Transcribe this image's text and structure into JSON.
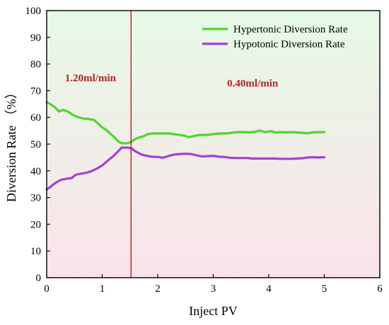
{
  "chart_data": {
    "type": "line",
    "title": "",
    "xlabel": "Inject PV",
    "ylabel": "Diversion Rate （%）",
    "xlim": [
      0,
      6
    ],
    "ylim": [
      0,
      100
    ],
    "x_ticks": [
      0,
      1,
      2,
      3,
      4,
      5,
      6
    ],
    "y_ticks": [
      0,
      10,
      20,
      30,
      40,
      50,
      60,
      70,
      80,
      90,
      100
    ],
    "grid": false,
    "legend_position": "top-right",
    "background_gradient": {
      "top": "#e6f9e6",
      "bottom": "#fbe3ea"
    },
    "series": [
      {
        "name": "Hypertonic Diversion Rate",
        "color": "#4fd52f",
        "points": [
          [
            0,
            65.8
          ],
          [
            0.08,
            64.8
          ],
          [
            0.15,
            63.8
          ],
          [
            0.22,
            62.2
          ],
          [
            0.3,
            62.8
          ],
          [
            0.38,
            62.2
          ],
          [
            0.45,
            61.2
          ],
          [
            0.55,
            60.2
          ],
          [
            0.65,
            59.6
          ],
          [
            0.75,
            59.4
          ],
          [
            0.85,
            59.1
          ],
          [
            0.92,
            57.8
          ],
          [
            1.0,
            56.3
          ],
          [
            1.08,
            55.2
          ],
          [
            1.15,
            53.8
          ],
          [
            1.22,
            52.6
          ],
          [
            1.28,
            51.2
          ],
          [
            1.35,
            50.3
          ],
          [
            1.45,
            50.3
          ],
          [
            1.52,
            50.8
          ],
          [
            1.6,
            52.0
          ],
          [
            1.68,
            52.6
          ],
          [
            1.75,
            53.0
          ],
          [
            1.82,
            53.7
          ],
          [
            1.9,
            54.0
          ],
          [
            2.0,
            54.0
          ],
          [
            2.1,
            54.0
          ],
          [
            2.2,
            54.0
          ],
          [
            2.3,
            53.7
          ],
          [
            2.4,
            53.4
          ],
          [
            2.5,
            53.1
          ],
          [
            2.55,
            52.6
          ],
          [
            2.65,
            53.0
          ],
          [
            2.75,
            53.4
          ],
          [
            2.85,
            53.4
          ],
          [
            2.95,
            53.6
          ],
          [
            3.05,
            53.9
          ],
          [
            3.15,
            54.0
          ],
          [
            3.25,
            54.0
          ],
          [
            3.35,
            54.3
          ],
          [
            3.45,
            54.5
          ],
          [
            3.55,
            54.5
          ],
          [
            3.65,
            54.4
          ],
          [
            3.75,
            54.6
          ],
          [
            3.85,
            55.1
          ],
          [
            3.92,
            54.5
          ],
          [
            4.0,
            54.7
          ],
          [
            4.05,
            54.9
          ],
          [
            4.12,
            54.3
          ],
          [
            4.2,
            54.5
          ],
          [
            4.3,
            54.4
          ],
          [
            4.4,
            54.5
          ],
          [
            4.5,
            54.4
          ],
          [
            4.6,
            54.2
          ],
          [
            4.7,
            54.1
          ],
          [
            4.8,
            54.4
          ],
          [
            4.9,
            54.5
          ],
          [
            5.0,
            54.5
          ]
        ]
      },
      {
        "name": "Hypotonic Diversion Rate",
        "color": "#a63fd6",
        "points": [
          [
            0,
            33.0
          ],
          [
            0.08,
            34.2
          ],
          [
            0.15,
            35.4
          ],
          [
            0.25,
            36.6
          ],
          [
            0.35,
            37.0
          ],
          [
            0.45,
            37.3
          ],
          [
            0.52,
            38.5
          ],
          [
            0.6,
            38.9
          ],
          [
            0.7,
            39.2
          ],
          [
            0.8,
            39.8
          ],
          [
            0.9,
            40.8
          ],
          [
            1.0,
            42.0
          ],
          [
            1.1,
            43.8
          ],
          [
            1.2,
            45.5
          ],
          [
            1.3,
            47.6
          ],
          [
            1.35,
            48.7
          ],
          [
            1.45,
            48.7
          ],
          [
            1.52,
            48.5
          ],
          [
            1.6,
            47.3
          ],
          [
            1.7,
            46.2
          ],
          [
            1.8,
            45.6
          ],
          [
            1.9,
            45.3
          ],
          [
            2.0,
            45.2
          ],
          [
            2.1,
            44.9
          ],
          [
            2.2,
            45.6
          ],
          [
            2.3,
            46.1
          ],
          [
            2.4,
            46.3
          ],
          [
            2.5,
            46.4
          ],
          [
            2.6,
            46.3
          ],
          [
            2.7,
            45.8
          ],
          [
            2.8,
            45.4
          ],
          [
            2.9,
            45.5
          ],
          [
            3.0,
            45.6
          ],
          [
            3.1,
            45.3
          ],
          [
            3.2,
            45.2
          ],
          [
            3.3,
            44.9
          ],
          [
            3.4,
            44.8
          ],
          [
            3.5,
            44.8
          ],
          [
            3.6,
            44.8
          ],
          [
            3.7,
            44.6
          ],
          [
            3.8,
            44.6
          ],
          [
            3.9,
            44.6
          ],
          [
            4.0,
            44.6
          ],
          [
            4.1,
            44.6
          ],
          [
            4.2,
            44.5
          ],
          [
            4.3,
            44.5
          ],
          [
            4.4,
            44.5
          ],
          [
            4.5,
            44.6
          ],
          [
            4.6,
            44.7
          ],
          [
            4.7,
            45.0
          ],
          [
            4.8,
            45.1
          ],
          [
            4.9,
            45.0
          ],
          [
            5.0,
            45.1
          ]
        ]
      }
    ],
    "vertical_line": {
      "x": 1.52,
      "color": "#b22222"
    },
    "annotations": [
      {
        "text": "1.20ml/min",
        "x": 0.33,
        "y": 73.5,
        "color": "#b22222"
      },
      {
        "text": "0.40ml/min",
        "x": 3.25,
        "y": 71.5,
        "color": "#b22222"
      }
    ]
  }
}
